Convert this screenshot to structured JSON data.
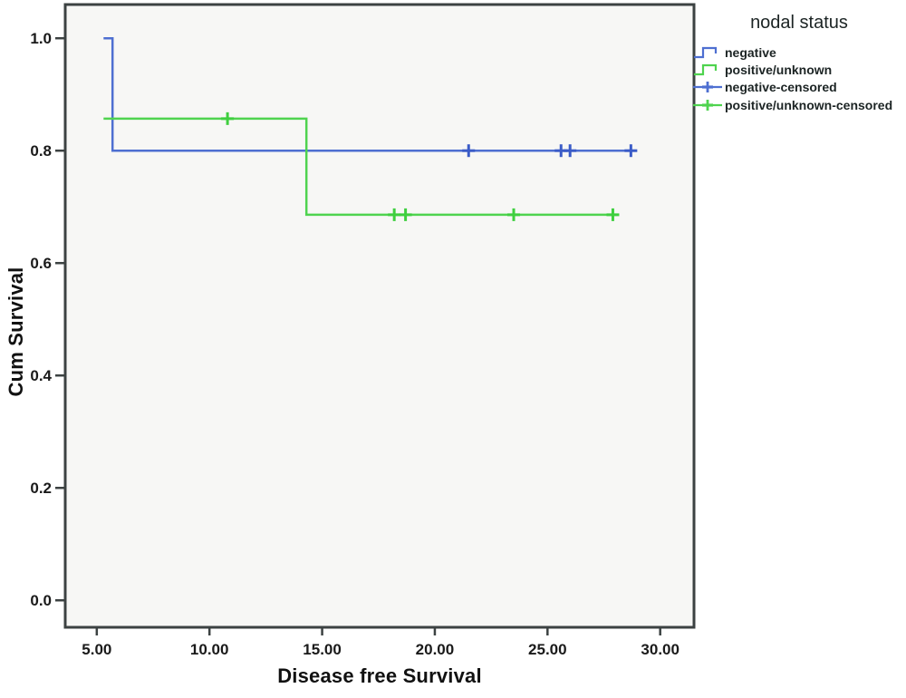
{
  "colors": {
    "negative": "#4e6fd1",
    "negative_censor": "#3a5bc7",
    "positive": "#4fd34f",
    "positive_censor": "#3fcf3f",
    "frame": "#3c4242",
    "plot_bg": "#f7f7f5",
    "tick_text": "#1a1a1a"
  },
  "chart_data": {
    "type": "line",
    "subtype": "kaplan-meier-step",
    "title": "",
    "xlabel": "Disease free Survival",
    "ylabel": "Cum Survival",
    "xlim": [
      3.6,
      31.5
    ],
    "ylim": [
      -0.048,
      1.06
    ],
    "grid": false,
    "xticks": [
      5,
      10,
      15,
      20,
      25,
      30
    ],
    "xtick_labels": [
      "5.00",
      "10.00",
      "15.00",
      "20.00",
      "25.00",
      "30.00"
    ],
    "yticks": [
      0.0,
      0.2,
      0.4,
      0.6,
      0.8,
      1.0
    ],
    "ytick_labels": [
      "0.0",
      "0.2",
      "0.4",
      "0.6",
      "0.8",
      "1.0"
    ],
    "series": [
      {
        "name": "negative",
        "color_role": "negative",
        "censor_color_role": "negative_censor",
        "points": [
          [
            5.3,
            1.0
          ],
          [
            5.7,
            1.0
          ],
          [
            5.7,
            0.8
          ],
          [
            28.9,
            0.8
          ]
        ],
        "censored": [
          [
            21.5,
            0.8
          ],
          [
            25.6,
            0.8
          ],
          [
            26.0,
            0.8
          ],
          [
            28.7,
            0.8
          ]
        ]
      },
      {
        "name": "positive/unknown",
        "color_role": "positive",
        "censor_color_role": "positive_censor",
        "points": [
          [
            5.3,
            0.857
          ],
          [
            14.3,
            0.857
          ],
          [
            14.3,
            0.686
          ],
          [
            28.1,
            0.686
          ]
        ],
        "censored": [
          [
            10.8,
            0.857
          ],
          [
            18.2,
            0.686
          ],
          [
            18.7,
            0.686
          ],
          [
            23.5,
            0.686
          ],
          [
            27.9,
            0.686
          ]
        ]
      }
    ],
    "legend": {
      "position": "top-right-outside",
      "title": "nodal status",
      "items": [
        {
          "label": "negative",
          "symbol": "step",
          "color_role": "negative"
        },
        {
          "label": "positive/unknown",
          "symbol": "step",
          "color_role": "positive"
        },
        {
          "label": "negative-censored",
          "symbol": "censor",
          "color_role": "negative"
        },
        {
          "label": "positive/unknown-censored",
          "symbol": "censor",
          "color_role": "positive"
        }
      ]
    }
  }
}
